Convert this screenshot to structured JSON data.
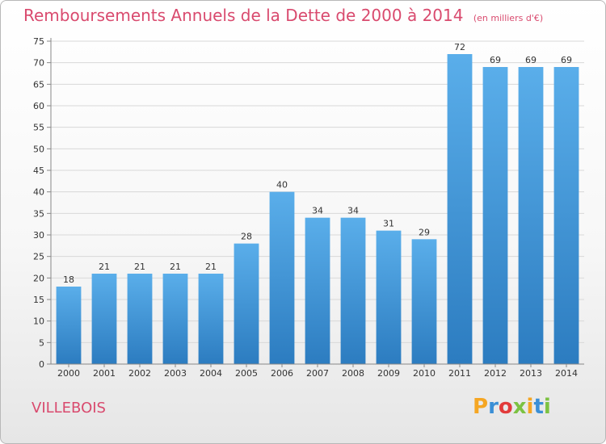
{
  "title": "Remboursements Annuels de la Dette de 2000 à 2014",
  "subtitle": "(en milliers d'€)",
  "place": "VILLEBOIS",
  "logo": {
    "letters": [
      "P",
      "r",
      "o",
      "x",
      "i",
      "t",
      "i"
    ],
    "colors": [
      "#f5a623",
      "#3a8fd6",
      "#e23b3b",
      "#7cc242",
      "#f5a623",
      "#3a8fd6",
      "#7cc242"
    ]
  },
  "colors": {
    "bar_light": "#5aaeea",
    "bar_dark": "#2c7cc0",
    "title": "#d94a6e"
  },
  "chart_data": {
    "type": "bar",
    "title": "Remboursements Annuels de la Dette de 2000 à 2014",
    "subtitle": "(en milliers d'€)",
    "categories": [
      "2000",
      "2001",
      "2002",
      "2003",
      "2004",
      "2005",
      "2006",
      "2007",
      "2008",
      "2009",
      "2010",
      "2011",
      "2012",
      "2013",
      "2014"
    ],
    "values": [
      18,
      21,
      21,
      21,
      21,
      28,
      40,
      34,
      34,
      31,
      29,
      72,
      69,
      69,
      69
    ],
    "ylim": [
      0,
      75
    ],
    "yticks": [
      0,
      5,
      10,
      15,
      20,
      25,
      30,
      35,
      40,
      45,
      50,
      55,
      60,
      65,
      70,
      75
    ],
    "grid": true,
    "xlabel": "",
    "ylabel": ""
  }
}
